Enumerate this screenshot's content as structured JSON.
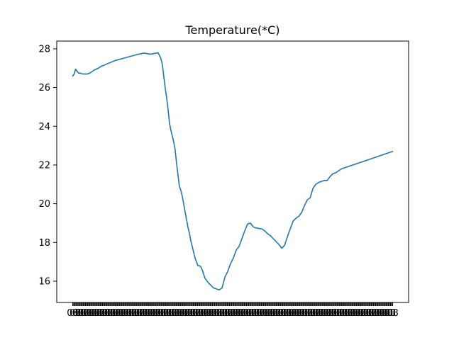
{
  "chart_data": {
    "type": "line",
    "title": "Temperature(*C)",
    "xlabel": "",
    "ylabel": "",
    "ylim": [
      14.9,
      28.4
    ],
    "yticks": [
      16,
      18,
      20,
      22,
      24,
      26,
      28
    ],
    "grid": false,
    "legend": "none",
    "series": [
      {
        "color": "#1f77b4",
        "x": [
          0,
          2,
          4,
          6,
          8,
          10,
          14,
          20,
          24,
          30,
          36,
          40,
          44,
          50,
          60,
          70,
          80,
          90,
          100,
          110,
          120,
          124,
          126,
          128,
          130,
          132,
          134,
          136,
          138,
          140,
          142,
          144,
          146,
          148,
          150,
          152,
          154,
          156,
          158,
          160,
          162,
          164,
          166,
          168,
          170,
          172,
          174,
          176,
          178,
          180,
          182,
          186,
          190,
          194,
          198,
          202,
          206,
          210,
          214,
          218,
          222,
          226,
          230,
          234,
          238,
          242,
          246,
          250,
          254,
          258,
          262,
          266,
          270,
          274,
          278,
          282,
          286,
          290,
          294,
          298,
          302,
          306,
          310,
          314,
          318,
          322,
          326,
          330,
          334,
          338,
          342,
          346,
          350,
          354,
          358,
          362,
          366,
          370,
          374,
          378,
          382,
          386,
          390,
          394,
          398,
          402,
          406,
          410,
          414,
          418,
          422,
          426,
          430,
          434,
          438,
          442,
          446,
          450
        ],
        "y": [
          26.6,
          26.7,
          26.95,
          26.85,
          26.75,
          26.75,
          26.7,
          26.7,
          26.75,
          26.9,
          27.0,
          27.1,
          27.15,
          27.25,
          27.4,
          27.5,
          27.6,
          27.7,
          27.78,
          27.72,
          27.8,
          27.5,
          27.2,
          26.6,
          26.0,
          25.5,
          24.9,
          24.2,
          23.8,
          23.5,
          23.2,
          22.8,
          22.1,
          21.5,
          20.9,
          20.7,
          20.4,
          20.0,
          19.6,
          19.2,
          18.8,
          18.5,
          18.1,
          17.8,
          17.5,
          17.2,
          17.0,
          16.8,
          16.8,
          16.75,
          16.6,
          16.15,
          15.95,
          15.8,
          15.65,
          15.6,
          15.55,
          15.65,
          16.2,
          16.5,
          16.9,
          17.2,
          17.6,
          17.8,
          18.2,
          18.6,
          18.95,
          19.0,
          18.8,
          18.75,
          18.72,
          18.7,
          18.6,
          18.45,
          18.35,
          18.2,
          18.05,
          17.9,
          17.7,
          17.85,
          18.3,
          18.7,
          19.1,
          19.25,
          19.35,
          19.55,
          19.9,
          20.2,
          20.3,
          20.8,
          21.0,
          21.1,
          21.15,
          21.2,
          21.2,
          21.4,
          21.55,
          21.6,
          21.7,
          21.8,
          21.85,
          21.9,
          21.95,
          22.0,
          22.05,
          22.1,
          22.15,
          22.2,
          22.25,
          22.3,
          22.35,
          22.4,
          22.45,
          22.5,
          22.55,
          22.6,
          22.65,
          22.7
        ]
      }
    ]
  }
}
